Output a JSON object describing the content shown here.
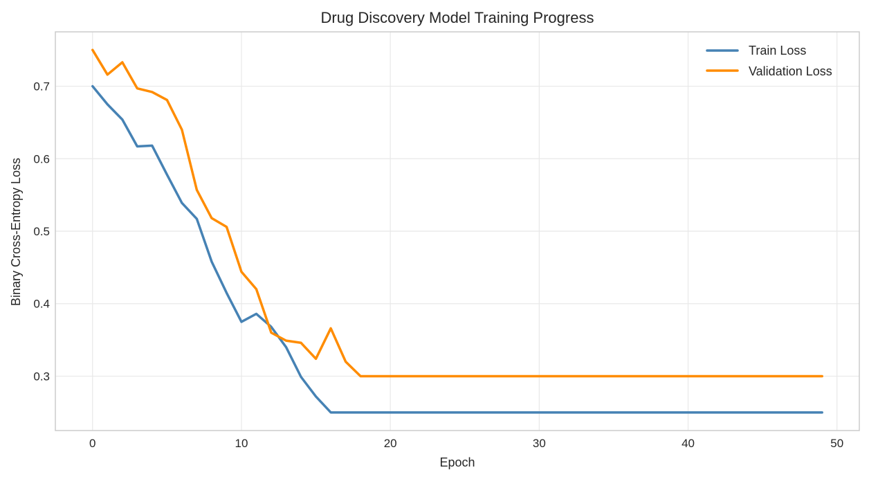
{
  "chart_data": {
    "type": "line",
    "title": "Drug Discovery Model Training Progress",
    "xlabel": "Epoch",
    "ylabel": "Binary Cross-Entropy Loss",
    "xlim": [
      -2.5,
      51.5
    ],
    "ylim": [
      0.225,
      0.775
    ],
    "x_ticks": [
      0,
      10,
      20,
      30,
      40,
      50
    ],
    "y_ticks": [
      0.3,
      0.4,
      0.5,
      0.6,
      0.7
    ],
    "grid": true,
    "legend_position": "top-right",
    "x": [
      0,
      1,
      2,
      3,
      4,
      5,
      6,
      7,
      8,
      9,
      10,
      11,
      12,
      13,
      14,
      15,
      16,
      17,
      18,
      19,
      20,
      21,
      22,
      23,
      24,
      25,
      26,
      27,
      28,
      29,
      30,
      31,
      32,
      33,
      34,
      35,
      36,
      37,
      38,
      39,
      40,
      41,
      42,
      43,
      44,
      45,
      46,
      47,
      48,
      49
    ],
    "series": [
      {
        "name": "Train Loss",
        "color": "#4682b4",
        "values": [
          0.7,
          0.675,
          0.654,
          0.617,
          0.618,
          0.578,
          0.539,
          0.517,
          0.458,
          0.415,
          0.375,
          0.386,
          0.368,
          0.34,
          0.299,
          0.272,
          0.25,
          0.25,
          0.25,
          0.25,
          0.25,
          0.25,
          0.25,
          0.25,
          0.25,
          0.25,
          0.25,
          0.25,
          0.25,
          0.25,
          0.25,
          0.25,
          0.25,
          0.25,
          0.25,
          0.25,
          0.25,
          0.25,
          0.25,
          0.25,
          0.25,
          0.25,
          0.25,
          0.25,
          0.25,
          0.25,
          0.25,
          0.25,
          0.25,
          0.25
        ]
      },
      {
        "name": "Validation Loss",
        "color": "#ff8c00",
        "values": [
          0.75,
          0.716,
          0.733,
          0.697,
          0.692,
          0.681,
          0.64,
          0.557,
          0.518,
          0.506,
          0.444,
          0.42,
          0.36,
          0.349,
          0.346,
          0.324,
          0.366,
          0.32,
          0.3,
          0.3,
          0.3,
          0.3,
          0.3,
          0.3,
          0.3,
          0.3,
          0.3,
          0.3,
          0.3,
          0.3,
          0.3,
          0.3,
          0.3,
          0.3,
          0.3,
          0.3,
          0.3,
          0.3,
          0.3,
          0.3,
          0.3,
          0.3,
          0.3,
          0.3,
          0.3,
          0.3,
          0.3,
          0.3,
          0.3,
          0.3
        ]
      }
    ]
  },
  "labels": {
    "x_ticks": [
      "0",
      "10",
      "20",
      "30",
      "40",
      "50"
    ],
    "y_ticks": [
      "0.3",
      "0.4",
      "0.5",
      "0.6",
      "0.7"
    ]
  },
  "style": {
    "grid_color": "#e8e8e8",
    "frame_color": "#cccccc",
    "text_color": "#262626"
  }
}
